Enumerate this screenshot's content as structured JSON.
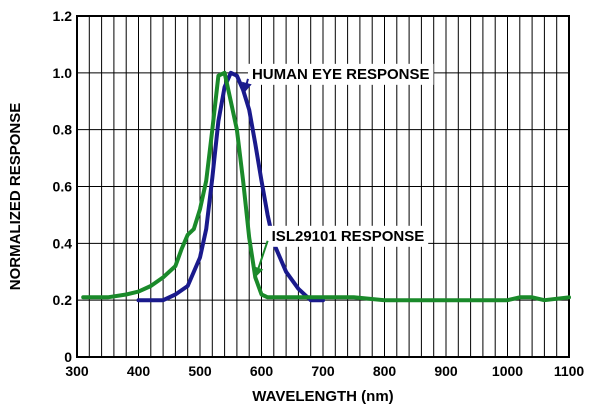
{
  "chart_data": {
    "type": "line",
    "title": "",
    "xlabel": "WAVELENGTH (nm)",
    "ylabel": "NORMALIZED RESPONSE",
    "xlim": [
      300,
      1100
    ],
    "ylim": [
      0,
      1.2
    ],
    "x_ticks": [
      "300",
      "400",
      "500",
      "600",
      "700",
      "800",
      "900",
      "1000",
      "1100"
    ],
    "y_ticks": [
      "0",
      "0.2",
      "0.4",
      "0.6",
      "0.8",
      "1.0",
      "1.2"
    ],
    "grid": true,
    "legend": "none",
    "series": [
      {
        "name": "HUMAN EYE RESPONSE",
        "color": "#1a1a8c",
        "points": [
          [
            400,
            0.2
          ],
          [
            440,
            0.2
          ],
          [
            460,
            0.22
          ],
          [
            480,
            0.25
          ],
          [
            500,
            0.35
          ],
          [
            510,
            0.45
          ],
          [
            520,
            0.63
          ],
          [
            530,
            0.83
          ],
          [
            540,
            0.95
          ],
          [
            550,
            1.0
          ],
          [
            560,
            0.99
          ],
          [
            570,
            0.94
          ],
          [
            580,
            0.87
          ],
          [
            590,
            0.75
          ],
          [
            600,
            0.62
          ],
          [
            610,
            0.5
          ],
          [
            620,
            0.4
          ],
          [
            640,
            0.3
          ],
          [
            660,
            0.24
          ],
          [
            680,
            0.2
          ],
          [
            700,
            0.2
          ]
        ]
      },
      {
        "name": "ISL29101 RESPONSE",
        "color": "#1a8a2a",
        "points": [
          [
            310,
            0.21
          ],
          [
            350,
            0.21
          ],
          [
            380,
            0.22
          ],
          [
            400,
            0.23
          ],
          [
            420,
            0.25
          ],
          [
            440,
            0.28
          ],
          [
            460,
            0.32
          ],
          [
            470,
            0.38
          ],
          [
            480,
            0.43
          ],
          [
            490,
            0.45
          ],
          [
            500,
            0.52
          ],
          [
            510,
            0.62
          ],
          [
            520,
            0.8
          ],
          [
            530,
            0.99
          ],
          [
            540,
            1.0
          ],
          [
            550,
            0.9
          ],
          [
            560,
            0.8
          ],
          [
            570,
            0.62
          ],
          [
            580,
            0.42
          ],
          [
            590,
            0.28
          ],
          [
            600,
            0.22
          ],
          [
            610,
            0.21
          ],
          [
            650,
            0.21
          ],
          [
            700,
            0.21
          ],
          [
            750,
            0.21
          ],
          [
            800,
            0.2
          ],
          [
            900,
            0.2
          ],
          [
            1000,
            0.2
          ],
          [
            1020,
            0.21
          ],
          [
            1040,
            0.21
          ],
          [
            1060,
            0.2
          ],
          [
            1100,
            0.21
          ]
        ]
      }
    ],
    "annotations": [
      {
        "text": "HUMAN EYE RESPONSE",
        "target_series": 0,
        "target_x": 572,
        "target_y": 0.93,
        "label_x": 578,
        "label_y": 1.0
      },
      {
        "text": "ISL29101 RESPONSE",
        "target_series": 1,
        "target_x": 590,
        "target_y": 0.28,
        "label_x": 610,
        "label_y": 0.43
      }
    ]
  }
}
